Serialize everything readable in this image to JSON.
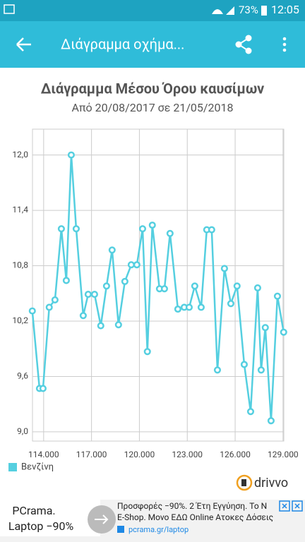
{
  "status_bar": {
    "battery": "73%",
    "time": "12:05"
  },
  "app_bar": {
    "title": "Διάγραμμα οχήμα..."
  },
  "chart_data": {
    "type": "line",
    "title": "Διάγραμμα Μέσου Όρου καυσίμων",
    "subtitle": "Από 20/08/2017 σε 21/05/2018",
    "x": [
      113290,
      113740,
      113960,
      114350,
      114710,
      115110,
      115420,
      115730,
      116040,
      116480,
      116790,
      117190,
      117580,
      117940,
      118290,
      118690,
      119090,
      119490,
      119840,
      120200,
      120500,
      120810,
      121260,
      121570,
      121920,
      122410,
      122810,
      123120,
      123470,
      123870,
      124220,
      124530,
      124890,
      125330,
      125730,
      126120,
      126570,
      126970,
      127410,
      127630,
      127890,
      128250,
      128650,
      129040
    ],
    "series": [
      {
        "name": "Βενζίνη",
        "color": "#55cfe0",
        "values": [
          10.31,
          9.47,
          9.47,
          10.35,
          10.43,
          11.2,
          10.64,
          12.0,
          11.2,
          10.26,
          10.49,
          10.49,
          10.15,
          10.58,
          10.97,
          10.16,
          10.63,
          10.81,
          10.81,
          11.2,
          9.87,
          11.24,
          10.55,
          10.55,
          11.15,
          10.33,
          10.35,
          10.35,
          10.58,
          10.35,
          11.19,
          11.19,
          9.67,
          10.77,
          10.39,
          10.58,
          9.73,
          9.22,
          10.56,
          9.67,
          10.13,
          9.12,
          10.47,
          10.08
        ]
      }
    ],
    "xlim": [
      113300,
      129050
    ],
    "ylim": [
      8.9,
      12.28
    ],
    "xticks": [
      {
        "value": 114000,
        "label": "114.000"
      },
      {
        "value": 117000,
        "label": "117.000"
      },
      {
        "value": 120000,
        "label": "120.000"
      },
      {
        "value": 123000,
        "label": "123.000"
      },
      {
        "value": 126000,
        "label": "126.000"
      },
      {
        "value": 129000,
        "label": "129.000"
      }
    ],
    "yticks": [
      {
        "value": 9.0,
        "label": "9,0"
      },
      {
        "value": 9.6,
        "label": "9,6"
      },
      {
        "value": 10.2,
        "label": "10,2"
      },
      {
        "value": 10.8,
        "label": "10,8"
      },
      {
        "value": 11.4,
        "label": "11,4"
      },
      {
        "value": 12.0,
        "label": "12,0"
      }
    ],
    "grid": true,
    "legend": "bottom-left"
  },
  "brand": "drivvo",
  "ad": {
    "headline": [
      "PCrama.",
      "Laptop −90%"
    ],
    "text": [
      "Προσφορές −90%. 2 Έτη Εγγύηση. Το N",
      "E-Shop. Μονο ΕΔΩ Online Ατοκες Δόσεις"
    ],
    "url": "pcrama.gr/laptop"
  }
}
